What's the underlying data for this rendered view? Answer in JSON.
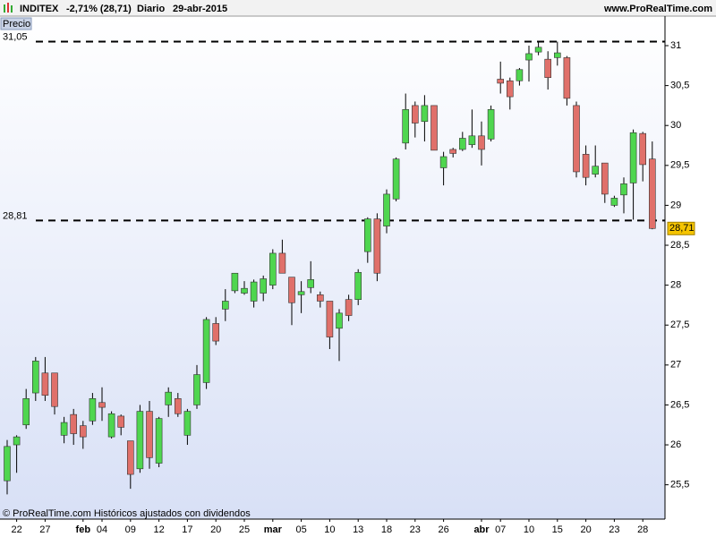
{
  "chart_data": {
    "type": "candlestick",
    "title": "INDITEX",
    "change": "-2,71% (28,71)",
    "period": "Diario",
    "date": "29-abr-2015",
    "site": "www.ProRealTime.com",
    "panel_label": "Precio",
    "footer": "© ProRealTime.com Históricos ajustados con dividendos",
    "up_color": "#4fd64f",
    "down_color": "#e0706a",
    "categories": [
      null,
      "22",
      null,
      null,
      "27",
      null,
      null,
      null,
      "feb",
      null,
      "04",
      null,
      null,
      "09",
      null,
      null,
      "12",
      null,
      null,
      "17",
      null,
      null,
      "20",
      null,
      null,
      "25",
      null,
      null,
      "mar",
      null,
      null,
      "05",
      null,
      null,
      "10",
      null,
      null,
      "13",
      null,
      null,
      "18",
      null,
      null,
      "23",
      null,
      null,
      "26",
      null,
      null,
      null,
      "abr",
      null,
      "07",
      null,
      null,
      "10",
      null,
      null,
      "15",
      null,
      null,
      "20",
      null,
      null,
      "23",
      null,
      null,
      "28",
      null
    ],
    "open": [
      25.55,
      26.0,
      26.25,
      26.65,
      26.9,
      26.9,
      26.12,
      26.38,
      26.24,
      26.3,
      26.53,
      26.1,
      26.36,
      26.05,
      25.7,
      26.42,
      25.77,
      26.5,
      26.58,
      26.12,
      26.5,
      26.78,
      27.52,
      27.7,
      27.93,
      27.9,
      27.8,
      27.9,
      28.0,
      28.4,
      28.1,
      27.88,
      27.97,
      27.88,
      27.8,
      27.46,
      27.82,
      27.82,
      28.42,
      28.83,
      28.74,
      29.08,
      29.78,
      30.25,
      30.05,
      30.25,
      29.47,
      29.7,
      29.7,
      29.76,
      29.87,
      29.83,
      30.58,
      30.56,
      30.56,
      30.82,
      30.92,
      30.83,
      30.85,
      30.85,
      30.25,
      29.64,
      29.39,
      29.53,
      29.0,
      29.13,
      29.28,
      29.9,
      29.58
    ],
    "high": [
      26.06,
      26.12,
      26.7,
      27.1,
      27.1,
      26.9,
      26.35,
      26.45,
      26.3,
      26.65,
      26.72,
      26.42,
      26.38,
      26.05,
      26.5,
      26.55,
      26.35,
      26.72,
      26.65,
      26.45,
      27.0,
      27.6,
      27.6,
      27.95,
      28.15,
      28.05,
      28.07,
      28.12,
      28.45,
      28.57,
      28.1,
      28.05,
      28.3,
      27.92,
      27.8,
      27.7,
      27.88,
      28.2,
      28.85,
      28.9,
      29.2,
      29.6,
      30.4,
      30.3,
      30.38,
      30.25,
      29.67,
      29.72,
      29.92,
      30.2,
      30.05,
      30.25,
      30.8,
      30.6,
      30.72,
      31.0,
      31.06,
      30.93,
      31.05,
      30.87,
      30.3,
      29.75,
      29.75,
      29.53,
      29.12,
      29.35,
      29.95,
      29.92,
      29.8
    ],
    "low": [
      25.38,
      25.65,
      26.2,
      26.55,
      26.55,
      26.38,
      26.02,
      26.0,
      25.95,
      26.25,
      26.3,
      26.08,
      26.12,
      25.45,
      25.65,
      25.7,
      25.72,
      26.35,
      26.35,
      26.0,
      26.45,
      26.7,
      27.25,
      27.55,
      27.9,
      27.88,
      27.72,
      27.8,
      27.95,
      28.15,
      27.5,
      27.65,
      27.9,
      27.72,
      27.2,
      27.05,
      27.55,
      27.75,
      28.28,
      28.05,
      28.65,
      29.05,
      29.7,
      29.85,
      29.8,
      29.69,
      29.25,
      29.6,
      29.68,
      29.72,
      29.5,
      29.8,
      30.4,
      30.2,
      30.5,
      30.55,
      30.88,
      30.45,
      30.75,
      30.25,
      29.35,
      29.25,
      29.35,
      29.03,
      28.98,
      28.9,
      28.82,
      29.3,
      28.7
    ],
    "close": [
      25.98,
      26.1,
      26.58,
      27.05,
      26.62,
      26.48,
      26.28,
      26.14,
      26.1,
      26.58,
      26.47,
      26.39,
      26.22,
      25.63,
      26.42,
      25.84,
      26.33,
      26.66,
      26.39,
      26.42,
      26.88,
      27.57,
      27.3,
      27.8,
      28.15,
      27.96,
      28.04,
      28.08,
      28.4,
      28.15,
      27.78,
      27.92,
      28.07,
      27.8,
      27.35,
      27.65,
      27.62,
      28.16,
      28.83,
      28.15,
      29.14,
      29.58,
      30.2,
      30.03,
      30.25,
      29.69,
      29.61,
      29.65,
      29.84,
      29.87,
      29.7,
      30.2,
      30.53,
      30.36,
      30.7,
      30.9,
      30.98,
      30.6,
      30.91,
      30.34,
      29.42,
      29.35,
      29.49,
      29.14,
      29.09,
      29.27,
      29.91,
      29.51,
      28.71
    ],
    "last_label": "28,71",
    "levels": [
      {
        "value": 31.05,
        "label": "31,05"
      },
      {
        "value": 28.81,
        "label": "28,81"
      }
    ],
    "ylim": [
      25.07,
      31.37
    ],
    "yticks": [
      {
        "value": 25.5,
        "label": "25,5"
      },
      26,
      {
        "value": 26.5,
        "label": "26,5"
      },
      27,
      {
        "value": 27.5,
        "label": "27,5"
      },
      28,
      {
        "value": 28.5,
        "label": "28,5"
      },
      29,
      {
        "value": 29.5,
        "label": "29,5"
      },
      30,
      {
        "value": 30.5,
        "label": "30,5"
      },
      31
    ]
  }
}
